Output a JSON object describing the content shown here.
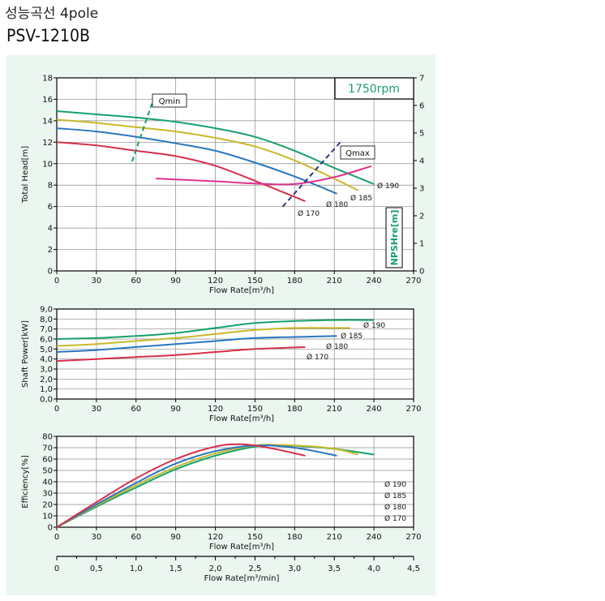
{
  "header": {
    "title_korean": "성능곡선 4pole",
    "model": "PSV-1210B"
  },
  "chart_data": [
    {
      "type": "line",
      "name": "head",
      "rpm_label": "1750rpm",
      "ylabel": "Total Head[m]",
      "y2label": "NPSHre[m]",
      "xlabel": "Flow Rate[m³/h]",
      "xlim": [
        0,
        270
      ],
      "ylim": [
        0,
        18
      ],
      "y2lim": [
        0,
        7
      ],
      "xticks": [
        "0",
        "30",
        "60",
        "90",
        "120",
        "150",
        "180",
        "210",
        "240",
        "270"
      ],
      "yticks": [
        "0",
        "2",
        "4",
        "6",
        "8",
        "10",
        "12",
        "14",
        "16",
        "18"
      ],
      "y2ticks": [
        "0",
        "1",
        "2",
        "3",
        "4",
        "5",
        "6",
        "7"
      ],
      "grid": true,
      "series": [
        {
          "name": "Ø 190",
          "color": "#16a06c",
          "x": [
            0,
            30,
            60,
            90,
            120,
            150,
            180,
            210,
            240
          ],
          "y": [
            14.9,
            14.6,
            14.3,
            13.9,
            13.3,
            12.5,
            11.2,
            9.6,
            8.1
          ]
        },
        {
          "name": "Ø 185",
          "color": "#c8b92a",
          "x": [
            0,
            30,
            60,
            90,
            120,
            150,
            180,
            210,
            228
          ],
          "y": [
            14.1,
            13.8,
            13.4,
            13.0,
            12.4,
            11.6,
            10.3,
            8.6,
            7.5
          ]
        },
        {
          "name": "Ø 180",
          "color": "#2a76c0",
          "x": [
            0,
            30,
            60,
            90,
            120,
            150,
            180,
            212
          ],
          "y": [
            13.3,
            13.0,
            12.5,
            11.9,
            11.2,
            10.1,
            8.8,
            7.2
          ]
        },
        {
          "name": "Ø 170",
          "color": "#d6304a",
          "x": [
            0,
            30,
            60,
            90,
            120,
            150,
            170,
            188
          ],
          "y": [
            12.0,
            11.7,
            11.2,
            10.7,
            9.8,
            8.4,
            7.4,
            6.5
          ]
        }
      ],
      "npshre": {
        "name": "NPSHre",
        "color": "#e0308e",
        "x": [
          75,
          120,
          150,
          180,
          210,
          238
        ],
        "y": [
          3.35,
          3.25,
          3.17,
          3.15,
          3.4,
          3.8
        ]
      },
      "qmin": {
        "label": "Qmin",
        "color": "#16a06c",
        "x": [
          57,
          72
        ],
        "y": [
          10.2,
          15.6
        ]
      },
      "qmax": {
        "label": "Qmax",
        "color": "#2b3a8a",
        "x": [
          171,
          216
        ],
        "y": [
          6.0,
          12.2
        ]
      }
    },
    {
      "type": "line",
      "name": "power",
      "ylabel": "Shaft Power[kW]",
      "xlabel": "Flow Rate[m³/h]",
      "xlim": [
        0,
        270
      ],
      "ylim": [
        0,
        9
      ],
      "xticks": [
        "0",
        "30",
        "60",
        "90",
        "120",
        "150",
        "180",
        "210",
        "240",
        "270"
      ],
      "yticks": [
        "0,0",
        "1,0",
        "2,0",
        "3,0",
        "4,0",
        "5,0",
        "6,0",
        "7,0",
        "8,0",
        "9,0"
      ],
      "grid": true,
      "series": [
        {
          "name": "Ø 190",
          "color": "#16a06c",
          "x": [
            0,
            30,
            60,
            90,
            120,
            150,
            180,
            210,
            240
          ],
          "y": [
            6.0,
            6.1,
            6.3,
            6.6,
            7.1,
            7.6,
            7.8,
            7.9,
            7.9
          ]
        },
        {
          "name": "Ø 185",
          "color": "#c8b92a",
          "x": [
            0,
            30,
            60,
            90,
            120,
            150,
            180,
            210,
            222
          ],
          "y": [
            5.3,
            5.5,
            5.8,
            6.1,
            6.5,
            6.9,
            7.1,
            7.1,
            7.1
          ]
        },
        {
          "name": "Ø 180",
          "color": "#2a76c0",
          "x": [
            0,
            30,
            60,
            90,
            120,
            150,
            180,
            212
          ],
          "y": [
            4.7,
            4.9,
            5.2,
            5.5,
            5.8,
            6.1,
            6.2,
            6.3
          ]
        },
        {
          "name": "Ø 170",
          "color": "#d6304a",
          "x": [
            0,
            30,
            60,
            90,
            120,
            150,
            188
          ],
          "y": [
            3.8,
            4.0,
            4.2,
            4.4,
            4.7,
            5.0,
            5.2
          ]
        }
      ]
    },
    {
      "type": "line",
      "name": "efficiency",
      "ylabel": "Efficiency[%]",
      "xlabel": "Flow Rate[m³/h]",
      "xlabel2": "Flow Rate[m³/min]",
      "xlim": [
        0,
        270
      ],
      "ylim": [
        0,
        80
      ],
      "xticks": [
        "0",
        "30",
        "60",
        "90",
        "120",
        "150",
        "180",
        "210",
        "240",
        "270"
      ],
      "x2ticks": [
        "0",
        "0,5",
        "1,0",
        "1,5",
        "2,0",
        "2,5",
        "3,0",
        "3,5",
        "4,0",
        "4,5"
      ],
      "yticks": [
        "0",
        "10",
        "20",
        "30",
        "40",
        "50",
        "60",
        "70",
        "80"
      ],
      "grid": true,
      "legend": [
        "Ø 190",
        "Ø 185",
        "Ø 180",
        "Ø 170"
      ],
      "series": [
        {
          "name": "Ø 190",
          "color": "#16a06c",
          "x": [
            0,
            30,
            60,
            90,
            120,
            150,
            170,
            190,
            210,
            240
          ],
          "y": [
            0,
            18,
            35,
            51,
            63,
            71,
            72,
            71,
            69,
            64
          ]
        },
        {
          "name": "Ø 185",
          "color": "#c8b92a",
          "x": [
            0,
            30,
            60,
            90,
            120,
            150,
            180,
            210,
            228
          ],
          "y": [
            0,
            19,
            37,
            53,
            65,
            72,
            72,
            69,
            64
          ]
        },
        {
          "name": "Ø 180",
          "color": "#2a76c0",
          "x": [
            0,
            30,
            60,
            90,
            120,
            150,
            180,
            212
          ],
          "y": [
            0,
            20,
            39,
            56,
            67,
            72,
            70,
            63
          ]
        },
        {
          "name": "Ø 170",
          "color": "#d6304a",
          "x": [
            0,
            30,
            60,
            90,
            120,
            140,
            160,
            188
          ],
          "y": [
            0,
            22,
            43,
            60,
            71,
            73,
            70,
            63
          ]
        }
      ]
    }
  ]
}
